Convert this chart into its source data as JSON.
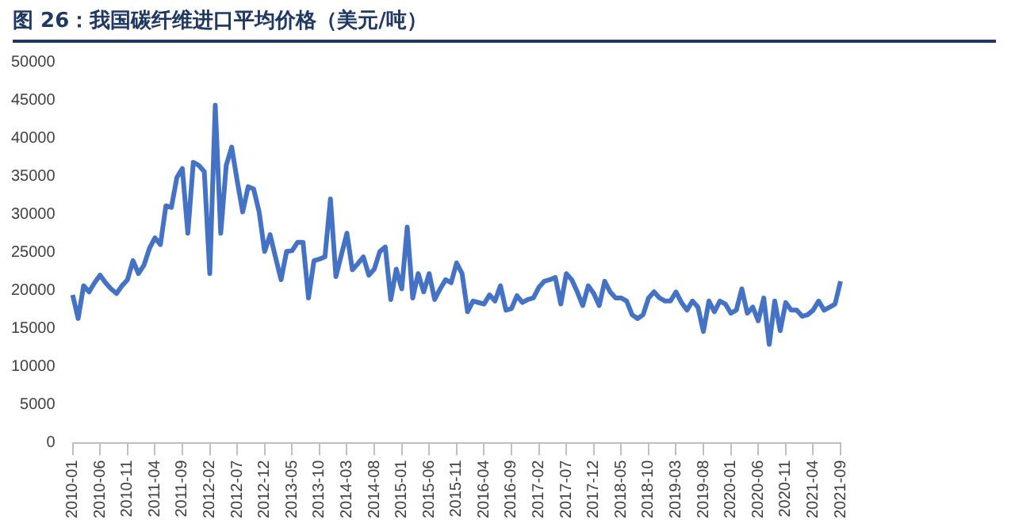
{
  "chart_data": {
    "type": "line",
    "title": "图 26：我国碳纤维进口平均价格（美元/吨）",
    "categories": [
      "2010-01",
      null,
      null,
      null,
      null,
      "2010-06",
      null,
      null,
      null,
      null,
      "2010-11",
      null,
      null,
      null,
      null,
      "2011-04",
      null,
      null,
      null,
      null,
      "2011-09",
      null,
      null,
      null,
      null,
      "2012-02",
      null,
      null,
      null,
      null,
      "2012-07",
      null,
      null,
      null,
      null,
      "2012-12",
      null,
      null,
      null,
      null,
      "2013-05",
      null,
      null,
      null,
      null,
      "2013-10",
      null,
      null,
      null,
      null,
      "2014-03",
      null,
      null,
      null,
      null,
      "2014-08",
      null,
      null,
      null,
      null,
      "2015-01",
      null,
      null,
      null,
      null,
      "2015-06",
      null,
      null,
      null,
      null,
      "2015-11",
      null,
      null,
      null,
      null,
      "2016-04",
      null,
      null,
      null,
      null,
      "2016-09",
      null,
      null,
      null,
      null,
      "2017-02",
      null,
      null,
      null,
      null,
      "2017-07",
      null,
      null,
      null,
      null,
      "2017-12",
      null,
      null,
      null,
      null,
      "2018-05",
      null,
      null,
      null,
      null,
      "2018-10",
      null,
      null,
      null,
      null,
      "2019-03",
      null,
      null,
      null,
      null,
      "2019-08",
      null,
      null,
      null,
      null,
      "2020-01",
      null,
      null,
      null,
      null,
      "2020-06",
      null,
      null,
      null,
      null,
      "2020-11",
      null,
      null,
      null,
      null,
      "2021-04",
      null,
      null,
      null,
      null,
      "2021-09"
    ],
    "series": [
      {
        "color": "#4472c4",
        "values": [
          19400,
          16300,
          20600,
          19800,
          21000,
          22000,
          21000,
          20200,
          19600,
          20600,
          21400,
          23900,
          22200,
          23300,
          25500,
          26900,
          26000,
          31100,
          30900,
          34800,
          36000,
          27500,
          36800,
          36400,
          35600,
          22200,
          44300,
          27500,
          36400,
          38800,
          34400,
          30300,
          33600,
          33300,
          30300,
          25100,
          27300,
          24300,
          21400,
          25100,
          25200,
          26300,
          26300,
          19000,
          23900,
          24100,
          24400,
          32000,
          21800,
          24700,
          27500,
          22700,
          23500,
          24400,
          22000,
          22800,
          25100,
          25700,
          18800,
          22800,
          20200,
          28300,
          19000,
          22200,
          19800,
          22200,
          18800,
          20200,
          21400,
          21000,
          23600,
          22200,
          17200,
          18600,
          18400,
          18200,
          19400,
          18600,
          20600,
          17400,
          17600,
          19300,
          18400,
          18800,
          19000,
          20400,
          21200,
          21400,
          21700,
          18200,
          22200,
          21400,
          19800,
          18000,
          20600,
          19600,
          18000,
          21200,
          19800,
          19000,
          19000,
          18600,
          16800,
          16300,
          16800,
          19000,
          19800,
          19000,
          18600,
          18600,
          19800,
          18400,
          17400,
          18600,
          17800,
          14600,
          18600,
          17200,
          18600,
          18200,
          17000,
          17400,
          20200,
          17000,
          17800,
          16000,
          19000,
          12900,
          18600,
          14700,
          18400,
          17400,
          17400,
          16600,
          16800,
          17400,
          18600,
          17400,
          17800,
          18200,
          21200
        ]
      }
    ],
    "ylim": [
      0,
      50000
    ],
    "yticks": [
      0,
      5000,
      10000,
      15000,
      20000,
      25000,
      30000,
      35000,
      40000,
      45000,
      50000
    ]
  }
}
